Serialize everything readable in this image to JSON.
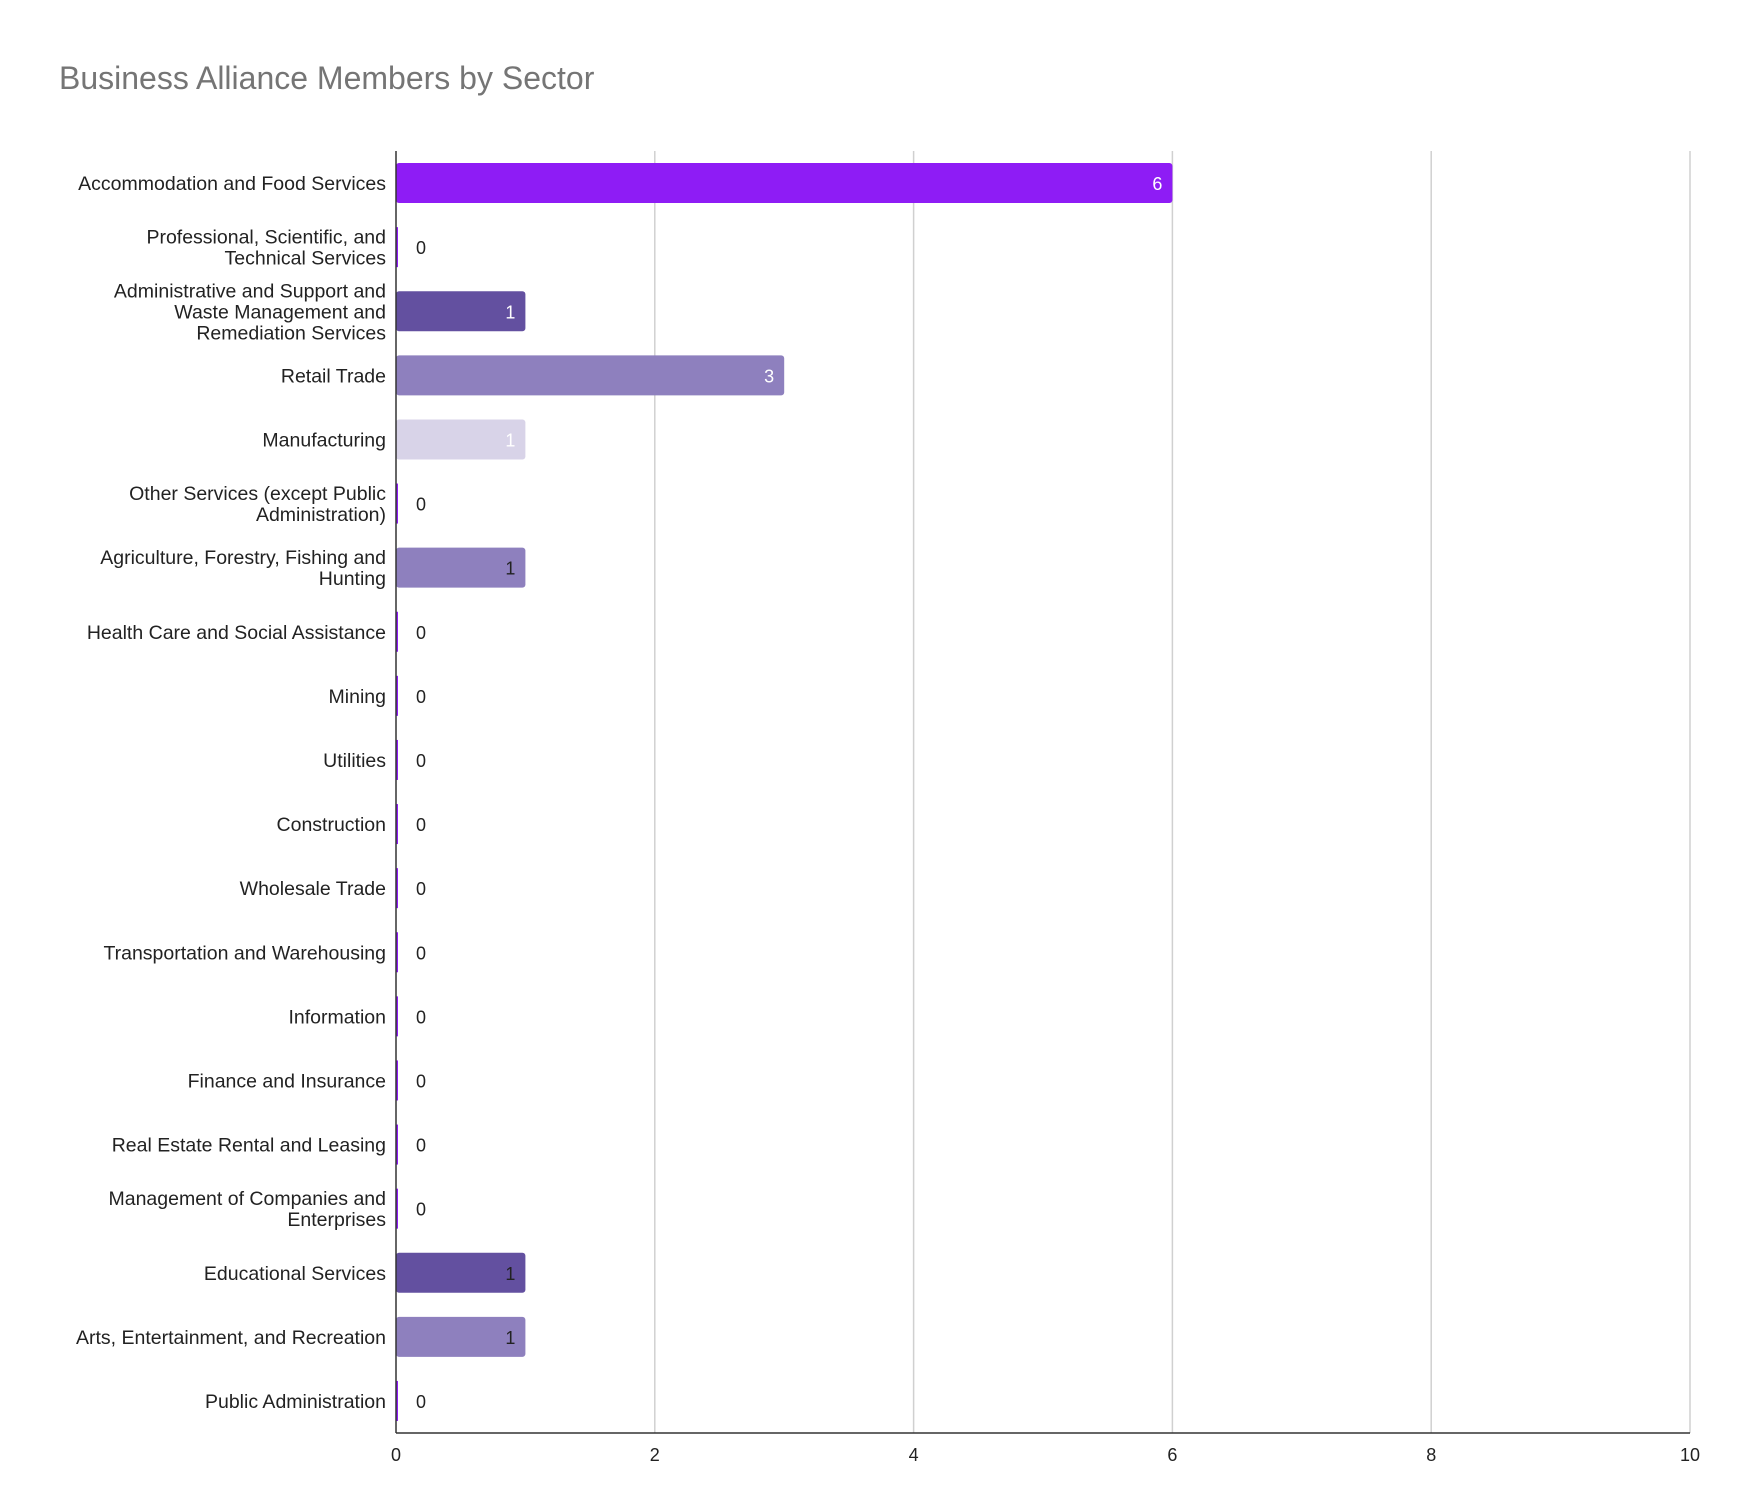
{
  "chart_data": {
    "type": "bar",
    "orientation": "horizontal",
    "title": "Business Alliance Members by Sector",
    "xlabel": "",
    "ylabel": "",
    "xlim": [
      0,
      10
    ],
    "xticks": [
      "0",
      "2",
      "4",
      "6",
      "8",
      "10"
    ],
    "grid": true,
    "categories": [
      [
        "Accommodation and Food Services"
      ],
      [
        "Professional, Scientific, and",
        "Technical Services"
      ],
      [
        "Administrative and Support and",
        "Waste Management and",
        "Remediation Services"
      ],
      [
        "Retail Trade"
      ],
      [
        "Manufacturing"
      ],
      [
        "Other Services (except Public",
        "Administration)"
      ],
      [
        "Agriculture, Forestry, Fishing and",
        "Hunting"
      ],
      [
        "Health Care and Social Assistance"
      ],
      [
        "Mining"
      ],
      [
        "Utilities"
      ],
      [
        "Construction"
      ],
      [
        "Wholesale Trade"
      ],
      [
        "Transportation and Warehousing"
      ],
      [
        "Information"
      ],
      [
        "Finance and Insurance"
      ],
      [
        "Real Estate Rental and Leasing"
      ],
      [
        "Management of Companies and",
        "Enterprises"
      ],
      [
        "Educational Services"
      ],
      [
        "Arts, Entertainment, and Recreation"
      ],
      [
        "Public Administration"
      ]
    ],
    "values": [
      6,
      0,
      1,
      3,
      1,
      0,
      1,
      0,
      0,
      0,
      0,
      0,
      0,
      0,
      0,
      0,
      0,
      1,
      1,
      0
    ],
    "colors": [
      "#8e1cf5",
      "#8e1cf5",
      "#6350a0",
      "#8e80be",
      "#d8d3e8",
      "#8e1cf5",
      "#8e80be",
      "#8e1cf5",
      "#8e1cf5",
      "#8e1cf5",
      "#8e1cf5",
      "#8e1cf5",
      "#8e1cf5",
      "#8e1cf5",
      "#8e1cf5",
      "#8e1cf5",
      "#8e1cf5",
      "#6350a0",
      "#8e80be",
      "#8e1cf5"
    ],
    "label_colors": [
      "#ffffff",
      "#222222",
      "#ffffff",
      "#ffffff",
      "#ffffff",
      "#222222",
      "#222222",
      "#222222",
      "#222222",
      "#222222",
      "#222222",
      "#222222",
      "#222222",
      "#222222",
      "#222222",
      "#222222",
      "#222222",
      "#222222",
      "#222222",
      "#222222"
    ]
  }
}
